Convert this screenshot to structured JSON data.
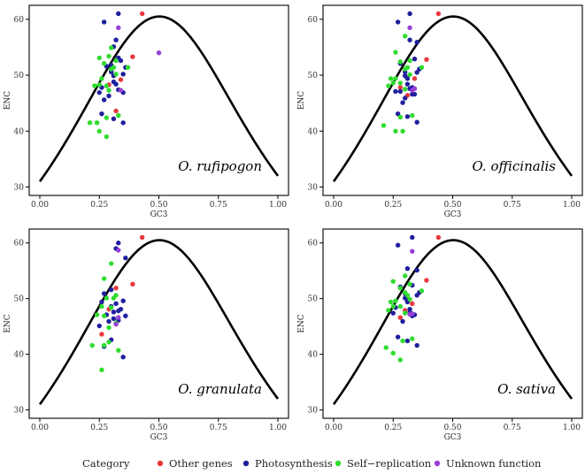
{
  "legend": {
    "title": "Category",
    "items": [
      {
        "label": "Other genes",
        "color": "#e8383d"
      },
      {
        "label": "Photosynthesis",
        "color": "#1f1f9e"
      },
      {
        "label": "Self−replication",
        "color": "#2fdc2f"
      },
      {
        "label": "Unknown function",
        "color": "#9b3fd6"
      }
    ]
  },
  "chart_data": [
    {
      "type": "scatter",
      "title": "O. rufipogon",
      "xlabel": "GC3",
      "ylabel": "ENC",
      "xlim": [
        0,
        1
      ],
      "ylim": [
        28.5,
        62.5
      ],
      "xticks": [
        "0.00",
        "0.25",
        "0.50",
        "0.75",
        "1.00"
      ],
      "yticks": [
        "30",
        "40",
        "50",
        "60"
      ],
      "grid": false,
      "curve": "expected ENC = 2 + GC3 + 29/(GC3^2 + (1-GC3)^2)",
      "series": [
        {
          "name": "Other genes",
          "points": [
            [
              0.43,
              61
            ],
            [
              0.39,
              53.3
            ],
            [
              0.32,
              43.6
            ],
            [
              0.29,
              48.3
            ],
            [
              0.34,
              49.2
            ]
          ]
        },
        {
          "name": "Photosynthesis",
          "points": [
            [
              0.27,
              59.5
            ],
            [
              0.33,
              61
            ],
            [
              0.32,
              56.3
            ],
            [
              0.31,
              55.1
            ],
            [
              0.36,
              51.4
            ],
            [
              0.25,
              46.9
            ],
            [
              0.26,
              47.8
            ],
            [
              0.28,
              51.6
            ],
            [
              0.3,
              50.6
            ],
            [
              0.31,
              49.9
            ],
            [
              0.32,
              48.4
            ],
            [
              0.33,
              47.4
            ],
            [
              0.35,
              50.2
            ],
            [
              0.35,
              46.9
            ],
            [
              0.29,
              46.3
            ],
            [
              0.31,
              48.8
            ],
            [
              0.34,
              52.6
            ],
            [
              0.31,
              42.2
            ],
            [
              0.35,
              41.5
            ],
            [
              0.26,
              43.1
            ],
            [
              0.3,
              50.8
            ],
            [
              0.27,
              45.6
            ],
            [
              0.33,
              53.1
            ],
            [
              0.3,
              51.8
            ]
          ]
        },
        {
          "name": "Self−replication",
          "points": [
            [
              0.3,
              54.9
            ],
            [
              0.25,
              53.1
            ],
            [
              0.27,
              52.1
            ],
            [
              0.29,
              53.4
            ],
            [
              0.32,
              52.6
            ],
            [
              0.37,
              51.4
            ],
            [
              0.23,
              48.1
            ],
            [
              0.25,
              48.3
            ],
            [
              0.26,
              49.4
            ],
            [
              0.28,
              48.1
            ],
            [
              0.3,
              51.1
            ],
            [
              0.32,
              50.2
            ],
            [
              0.28,
              42.4
            ],
            [
              0.33,
              42.8
            ],
            [
              0.24,
              41.5
            ],
            [
              0.21,
              41.5
            ],
            [
              0.25,
              40
            ],
            [
              0.28,
              39
            ],
            [
              0.29,
              47.3
            ],
            [
              0.31,
              51.4
            ]
          ]
        },
        {
          "name": "Unknown function",
          "points": [
            [
              0.33,
              58.5
            ],
            [
              0.5,
              54
            ],
            [
              0.34,
              47.3
            ]
          ]
        }
      ]
    },
    {
      "type": "scatter",
      "title": "O. officinalis",
      "xlabel": "GC3",
      "ylabel": "ENC",
      "xlim": [
        0,
        1
      ],
      "ylim": [
        28.5,
        62.5
      ],
      "xticks": [
        "0.00",
        "0.25",
        "0.50",
        "0.75",
        "1.00"
      ],
      "yticks": [
        "30",
        "40",
        "50",
        "60"
      ],
      "grid": false,
      "curve": "expected ENC = 2 + GC3 + 29/(GC3^2 + (1-GC3)^2)",
      "series": [
        {
          "name": "Other genes",
          "points": [
            [
              0.44,
              61
            ],
            [
              0.39,
              52.8
            ],
            [
              0.31,
              46.4
            ],
            [
              0.28,
              47.8
            ],
            [
              0.34,
              49.4
            ]
          ]
        },
        {
          "name": "Photosynthesis",
          "points": [
            [
              0.27,
              59.5
            ],
            [
              0.32,
              61
            ],
            [
              0.32,
              56.3
            ],
            [
              0.35,
              55.9
            ],
            [
              0.36,
              51.1
            ],
            [
              0.26,
              47.1
            ],
            [
              0.28,
              47.1
            ],
            [
              0.28,
              52.1
            ],
            [
              0.3,
              50.6
            ],
            [
              0.31,
              48.4
            ],
            [
              0.32,
              47.6
            ],
            [
              0.33,
              46.6
            ],
            [
              0.35,
              50.5
            ],
            [
              0.34,
              46.6
            ],
            [
              0.3,
              45.9
            ],
            [
              0.31,
              49.4
            ],
            [
              0.34,
              52.9
            ],
            [
              0.31,
              42.6
            ],
            [
              0.35,
              41.6
            ],
            [
              0.27,
              43.1
            ],
            [
              0.3,
              49.9
            ],
            [
              0.29,
              45.1
            ],
            [
              0.33,
              47.8
            ]
          ]
        },
        {
          "name": "Self−replication",
          "points": [
            [
              0.26,
              54.1
            ],
            [
              0.3,
              57
            ],
            [
              0.28,
              52.4
            ],
            [
              0.32,
              52.6
            ],
            [
              0.37,
              51.4
            ],
            [
              0.23,
              48.1
            ],
            [
              0.25,
              48.6
            ],
            [
              0.26,
              49.4
            ],
            [
              0.28,
              48.6
            ],
            [
              0.3,
              51.1
            ],
            [
              0.32,
              50.1
            ],
            [
              0.28,
              42.5
            ],
            [
              0.33,
              42.8
            ],
            [
              0.21,
              41
            ],
            [
              0.26,
              40
            ],
            [
              0.29,
              40
            ],
            [
              0.3,
              47.5
            ],
            [
              0.31,
              51.4
            ],
            [
              0.24,
              49.4
            ]
          ]
        },
        {
          "name": "Unknown function",
          "points": [
            [
              0.32,
              58.5
            ],
            [
              0.33,
              47.3
            ],
            [
              0.34,
              47.6
            ]
          ]
        }
      ]
    },
    {
      "type": "scatter",
      "title": "O. granulata",
      "xlabel": "GC3",
      "ylabel": "ENC",
      "xlim": [
        0,
        1
      ],
      "ylim": [
        28.5,
        62.5
      ],
      "xticks": [
        "0.00",
        "0.25",
        "0.50",
        "0.75",
        "1.00"
      ],
      "yticks": [
        "30",
        "40",
        "50",
        "60"
      ],
      "grid": false,
      "curve": "expected ENC = 2 + GC3 + 29/(GC3^2 + (1-GC3)^2)",
      "series": [
        {
          "name": "Other genes",
          "points": [
            [
              0.43,
              61
            ],
            [
              0.39,
              52.6
            ],
            [
              0.32,
              51.9
            ],
            [
              0.29,
              48.1
            ],
            [
              0.26,
              43.6
            ]
          ]
        },
        {
          "name": "Photosynthesis",
          "points": [
            [
              0.33,
              60
            ],
            [
              0.32,
              59
            ],
            [
              0.36,
              57.3
            ],
            [
              0.3,
              51.6
            ],
            [
              0.26,
              49.4
            ],
            [
              0.27,
              50.9
            ],
            [
              0.28,
              47.1
            ],
            [
              0.3,
              48.6
            ],
            [
              0.31,
              47.6
            ],
            [
              0.32,
              49.1
            ],
            [
              0.33,
              46.1
            ],
            [
              0.34,
              48.1
            ],
            [
              0.35,
              49.6
            ],
            [
              0.36,
              46.9
            ],
            [
              0.29,
              45.9
            ],
            [
              0.31,
              46.4
            ],
            [
              0.35,
              39.5
            ],
            [
              0.3,
              42.6
            ],
            [
              0.27,
              41.4
            ],
            [
              0.25,
              45.1
            ],
            [
              0.33,
              47.8
            ]
          ]
        },
        {
          "name": "Self−replication",
          "points": [
            [
              0.27,
              53.6
            ],
            [
              0.3,
              56.3
            ],
            [
              0.32,
              50.6
            ],
            [
              0.28,
              50.1
            ],
            [
              0.26,
              48.6
            ],
            [
              0.24,
              47.1
            ],
            [
              0.27,
              46.9
            ],
            [
              0.29,
              44.8
            ],
            [
              0.32,
              45.6
            ],
            [
              0.22,
              41.6
            ],
            [
              0.27,
              41.6
            ],
            [
              0.29,
              42.2
            ],
            [
              0.26,
              37.2
            ],
            [
              0.33,
              40.7
            ],
            [
              0.3,
              48.4
            ],
            [
              0.31,
              50.1
            ]
          ]
        },
        {
          "name": "Unknown function",
          "points": [
            [
              0.33,
              58.7
            ],
            [
              0.33,
              46.6
            ],
            [
              0.32,
              45.4
            ]
          ]
        }
      ]
    },
    {
      "type": "scatter",
      "title": "O. sativa",
      "xlabel": "GC3",
      "ylabel": "ENC",
      "xlim": [
        0,
        1
      ],
      "ylim": [
        28.5,
        62.5
      ],
      "xticks": [
        "0.00",
        "0.25",
        "0.50",
        "0.75",
        "1.00"
      ],
      "yticks": [
        "30",
        "40",
        "50",
        "60"
      ],
      "grid": false,
      "curve": "expected ENC = 2 + GC3 + 29/(GC3^2 + (1-GC3)^2)",
      "series": [
        {
          "name": "Other genes",
          "points": [
            [
              0.44,
              61
            ],
            [
              0.39,
              53.3
            ],
            [
              0.3,
              47.9
            ],
            [
              0.28,
              46.6
            ],
            [
              0.33,
              49.1
            ]
          ]
        },
        {
          "name": "Photosynthesis",
          "points": [
            [
              0.27,
              59.6
            ],
            [
              0.33,
              61
            ],
            [
              0.35,
              55.1
            ],
            [
              0.31,
              55.4
            ],
            [
              0.36,
              51.1
            ],
            [
              0.25,
              47.4
            ],
            [
              0.26,
              48.4
            ],
            [
              0.28,
              52.1
            ],
            [
              0.3,
              50.1
            ],
            [
              0.31,
              49.6
            ],
            [
              0.32,
              48.1
            ],
            [
              0.33,
              46.9
            ],
            [
              0.35,
              50.6
            ],
            [
              0.34,
              47.1
            ],
            [
              0.29,
              45.9
            ],
            [
              0.31,
              49.4
            ],
            [
              0.33,
              52.4
            ],
            [
              0.31,
              42.4
            ],
            [
              0.35,
              41.6
            ],
            [
              0.27,
              43.1
            ],
            [
              0.3,
              50.9
            ],
            [
              0.32,
              47.6
            ]
          ]
        },
        {
          "name": "Self−replication",
          "points": [
            [
              0.3,
              54.1
            ],
            [
              0.25,
              53.1
            ],
            [
              0.28,
              51.9
            ],
            [
              0.32,
              52.6
            ],
            [
              0.37,
              51.4
            ],
            [
              0.23,
              47.9
            ],
            [
              0.25,
              48.6
            ],
            [
              0.26,
              49.6
            ],
            [
              0.28,
              48.6
            ],
            [
              0.3,
              51.1
            ],
            [
              0.32,
              49.9
            ],
            [
              0.29,
              42.4
            ],
            [
              0.33,
              42.8
            ],
            [
              0.22,
              41.2
            ],
            [
              0.25,
              40.2
            ],
            [
              0.28,
              39
            ],
            [
              0.3,
              47.4
            ],
            [
              0.31,
              50.6
            ],
            [
              0.24,
              49.4
            ]
          ]
        },
        {
          "name": "Unknown function",
          "points": [
            [
              0.33,
              58.5
            ],
            [
              0.32,
              47.2
            ],
            [
              0.33,
              47.3
            ]
          ]
        }
      ]
    }
  ]
}
